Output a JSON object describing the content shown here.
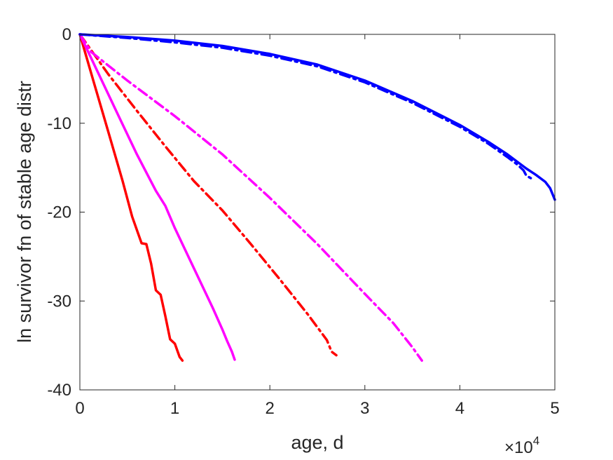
{
  "chart_data": {
    "type": "line",
    "title": "",
    "xlabel": "age, d",
    "ylabel": "ln survivor fn of stable age distr",
    "x_multiplier_label": "×10",
    "x_multiplier_exponent": "4",
    "xlim": [
      0,
      50000
    ],
    "ylim": [
      -40,
      0
    ],
    "xticks": [
      0,
      10000,
      20000,
      30000,
      40000,
      50000
    ],
    "xtick_labels": [
      "0",
      "1",
      "2",
      "3",
      "4",
      "5"
    ],
    "yticks": [
      0,
      -10,
      -20,
      -30,
      -40
    ],
    "ytick_labels": [
      "0",
      "-10",
      "-20",
      "-30",
      "-40"
    ],
    "grid": false,
    "legend": "none",
    "series": [
      {
        "color": "#ff0000",
        "style": "solid",
        "x": [
          0,
          1500,
          3000,
          4500,
          5500,
          6500,
          7000,
          7500,
          8000,
          8500,
          9000,
          9500,
          10000,
          10500,
          10800
        ],
        "y": [
          0,
          -5.5,
          -11,
          -16.5,
          -20.5,
          -23.5,
          -23.6,
          -25.8,
          -28.8,
          -29.3,
          -31.7,
          -34.3,
          -34.8,
          -36.3,
          -36.7
        ]
      },
      {
        "color": "#ff00ff",
        "style": "solid",
        "x": [
          0,
          2000,
          4000,
          6000,
          8000,
          9000,
          10000,
          12000,
          14000,
          15000,
          15500,
          16000,
          16300
        ],
        "y": [
          0,
          -4.5,
          -9,
          -13.5,
          -17.6,
          -19.3,
          -21.8,
          -26.3,
          -30.8,
          -33.2,
          -34.5,
          -35.7,
          -36.6
        ]
      },
      {
        "color": "#ff0000",
        "style": "dashdot",
        "x": [
          0,
          3000,
          6000,
          9000,
          12000,
          15000,
          18000,
          21000,
          24000,
          26000,
          26500,
          27000
        ],
        "y": [
          0,
          -4.5,
          -8.6,
          -12.6,
          -16.5,
          -19.8,
          -23.6,
          -27.5,
          -31.5,
          -34.4,
          -35.7,
          -36.1
        ]
      },
      {
        "color": "#ff00ff",
        "style": "dashdot",
        "x": [
          0,
          1200,
          5000,
          10000,
          15000,
          20000,
          25000,
          30000,
          33000,
          35000,
          36000
        ],
        "y": [
          0,
          -2,
          -5.2,
          -9.2,
          -13.5,
          -18.4,
          -23.6,
          -29.2,
          -32.5,
          -35.2,
          -36.7
        ]
      },
      {
        "color": "#0000ff",
        "style": "solid",
        "x": [
          0,
          5000,
          10000,
          15000,
          20000,
          25000,
          30000,
          35000,
          40000,
          43000,
          45000,
          47000,
          48000,
          49000,
          49500,
          50000
        ],
        "y": [
          0,
          -0.3,
          -0.7,
          -1.3,
          -2.2,
          -3.4,
          -5.2,
          -7.5,
          -10.2,
          -12.1,
          -13.5,
          -15.1,
          -15.8,
          -16.6,
          -17.3,
          -18.6
        ]
      },
      {
        "color": "#0000ff",
        "style": "dashdot",
        "x": [
          0,
          5000,
          10000,
          15000,
          20000,
          25000,
          30000,
          35000,
          40000,
          43000,
          45000,
          46000,
          46700,
          47000,
          47500
        ],
        "y": [
          0,
          -0.4,
          -0.9,
          -1.5,
          -2.4,
          -3.6,
          -5.4,
          -7.7,
          -10.4,
          -12.3,
          -13.8,
          -14.6,
          -15.3,
          -15.9,
          -16.2
        ]
      }
    ]
  }
}
